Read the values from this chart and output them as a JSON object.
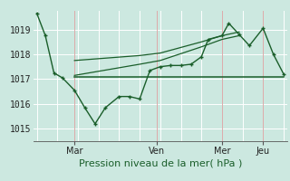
{
  "background_color": "#cce8e0",
  "grid_color": "#b8d8d0",
  "white_grid_color": "#ffffff",
  "line_color": "#1a5e2a",
  "ylim": [
    1014.5,
    1019.75
  ],
  "xlim": [
    -2,
    146
  ],
  "ylabel_ticks": [
    1015,
    1016,
    1017,
    1018,
    1019
  ],
  "xlabel": "Pression niveau de la mer( hPa )",
  "day_labels": [
    "Mar",
    "Ven",
    "Mer",
    "Jeu"
  ],
  "day_positions": [
    22,
    70,
    108,
    132
  ],
  "series1_x": [
    0,
    5,
    10,
    15,
    22,
    28,
    34,
    40,
    48,
    54,
    60,
    66,
    72,
    78,
    84,
    90,
    96,
    100,
    108,
    112,
    118,
    124,
    132,
    138,
    144
  ],
  "series1_y": [
    1019.65,
    1018.75,
    1017.25,
    1017.05,
    1016.55,
    1015.85,
    1015.2,
    1015.85,
    1016.3,
    1016.3,
    1016.2,
    1017.35,
    1017.5,
    1017.55,
    1017.55,
    1017.6,
    1017.9,
    1018.6,
    1018.75,
    1019.25,
    1018.8,
    1018.35,
    1019.05,
    1018.0,
    1017.2
  ],
  "series2_x": [
    22,
    144
  ],
  "series2_y": [
    1017.1,
    1017.1
  ],
  "series3_x": [
    22,
    60,
    72,
    96,
    108,
    118
  ],
  "series3_y": [
    1017.75,
    1017.95,
    1018.05,
    1018.5,
    1018.75,
    1018.9
  ],
  "series4_x": [
    22,
    60,
    72,
    96,
    108,
    118
  ],
  "series4_y": [
    1017.15,
    1017.6,
    1017.75,
    1018.3,
    1018.6,
    1018.75
  ],
  "vline_positions": [
    22,
    70,
    108,
    132
  ],
  "tick_fontsize": 7,
  "xlabel_fontsize": 8
}
